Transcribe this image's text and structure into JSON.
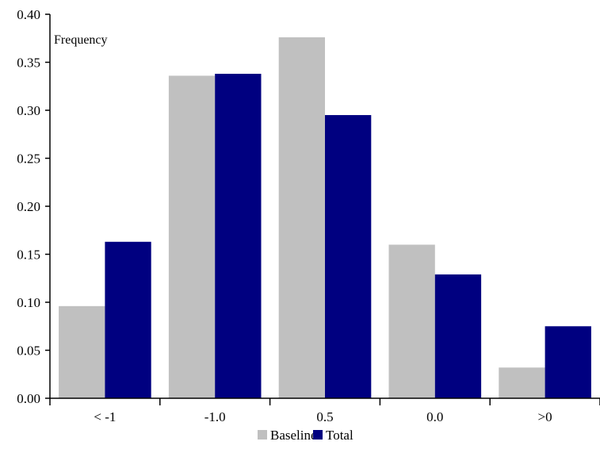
{
  "chart_data": {
    "type": "bar",
    "annotation": "Frequency",
    "categories": [
      "< -1",
      "-1.0",
      "0.5",
      "0.0",
      ">0"
    ],
    "series": [
      {
        "name": "Baseline",
        "color": "#C0C0C0",
        "values": [
          0.096,
          0.336,
          0.376,
          0.16,
          0.032
        ]
      },
      {
        "name": "Total",
        "color": "#000080",
        "values": [
          0.163,
          0.338,
          0.295,
          0.129,
          0.075
        ]
      }
    ],
    "ylim": [
      0,
      0.4
    ],
    "yticks": [
      "0.00",
      "0.05",
      "0.10",
      "0.15",
      "0.20",
      "0.25",
      "0.30",
      "0.35",
      "0.40"
    ],
    "grid": false,
    "legend_position": "bottom"
  }
}
